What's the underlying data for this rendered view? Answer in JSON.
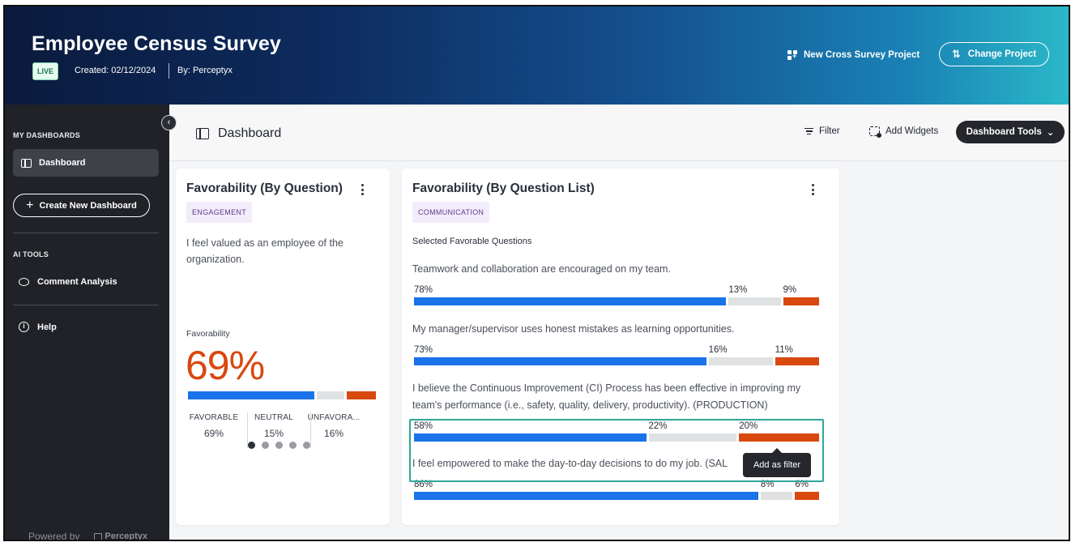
{
  "header": {
    "title": "Employee Census Survey",
    "status_badge": "LIVE",
    "created": "Created: 02/12/2024",
    "by": "By: Perceptyx",
    "cross_survey_label": "New Cross Survey Project",
    "change_project_label": "Change Project",
    "gradient_colors": [
      "#0a1a3c",
      "#14508f",
      "#2ab8c8"
    ]
  },
  "sidebar": {
    "my_dashboards_heading": "MY DASHBOARDS",
    "dashboard_item": "Dashboard",
    "create_button": "Create New Dashboard",
    "ai_tools_heading": "AI TOOLS",
    "comment_analysis": "Comment Analysis",
    "help": "Help",
    "powered_by": "Powered by",
    "powered_logo": "Perceptyx"
  },
  "toolbar": {
    "title": "Dashboard",
    "filter": "Filter",
    "add_widgets": "Add Widgets",
    "dashboard_tools": "Dashboard Tools"
  },
  "colors": {
    "favorable": "#1a73e8",
    "neutral": "#e0e1e3",
    "unfavorable": "#d9480f",
    "highlight": "#2ea897"
  },
  "card1": {
    "title": "Favorability (By Question)",
    "tag": "ENGAGEMENT",
    "question": "I feel valued as an employee of the organization.",
    "fav_label": "Favorability",
    "fav_value": "69%",
    "bar": {
      "favorable": 69,
      "neutral": 15,
      "unfavorable": 16
    },
    "stats": [
      {
        "label": "FAVORABLE",
        "value": "69%"
      },
      {
        "label": "NEUTRAL",
        "value": "15%"
      },
      {
        "label": "UNFAVORA...",
        "value": "16%"
      }
    ],
    "pager": {
      "pages": 5,
      "current": 1
    }
  },
  "card2": {
    "title": "Favorability (By Question List)",
    "tag": "COMMUNICATION",
    "subtitle": "Selected Favorable Questions",
    "questions": [
      {
        "text": "Teamwork and collaboration are encouraged on my team.",
        "fav": 78,
        "neu": 13,
        "unf": 9,
        "fav_label": "78%",
        "neu_label": "13%",
        "unf_label": "9%"
      },
      {
        "text": "My manager/supervisor uses honest mistakes as learning opportunities.",
        "fav": 73,
        "neu": 16,
        "unf": 11,
        "fav_label": "73%",
        "neu_label": "16%",
        "unf_label": "11%"
      },
      {
        "text": "I believe the Continuous Improvement (CI) Process has been effective in improving my team's performance (i.e., safety, quality, delivery, productivity). (PRODUCTION)",
        "fav": 58,
        "neu": 22,
        "unf": 20,
        "fav_label": "58%",
        "neu_label": "22%",
        "unf_label": "20%"
      },
      {
        "text": "I feel empowered to make the day-to-day decisions to do my job. (SAL",
        "fav": 86,
        "neu": 8,
        "unf": 6,
        "fav_label": "86%",
        "neu_label": "8%",
        "unf_label": "6%"
      }
    ],
    "tooltip": "Add as filter"
  }
}
